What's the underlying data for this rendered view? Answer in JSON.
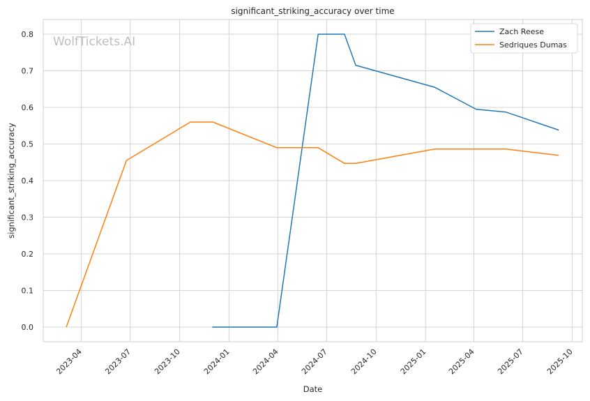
{
  "chart_data": {
    "type": "line",
    "title": "significant_striking_accuracy over time",
    "xlabel": "Date",
    "ylabel": "significant_striking_accuracy",
    "watermark": "WolfTickets.AI",
    "xlim": [
      "2023-01-20",
      "2025-10-20"
    ],
    "ylim": [
      -0.04,
      0.84
    ],
    "x_ticks": [
      "2023-04",
      "2023-07",
      "2023-10",
      "2024-01",
      "2024-04",
      "2024-07",
      "2024-10",
      "2025-01",
      "2025-04",
      "2025-07",
      "2025-10"
    ],
    "y_ticks": [
      0.0,
      0.1,
      0.2,
      0.3,
      0.4,
      0.5,
      0.6,
      0.7,
      0.8
    ],
    "y_tick_labels": [
      "0.0",
      "0.1",
      "0.2",
      "0.3",
      "0.4",
      "0.5",
      "0.6",
      "0.7",
      "0.8"
    ],
    "grid": true,
    "legend_position": "top-right",
    "series": [
      {
        "name": "Zach Reese",
        "color": "#1f77b4",
        "points": [
          {
            "x": "2023-12-01",
            "y": 0.0
          },
          {
            "x": "2024-03-30",
            "y": 0.0
          },
          {
            "x": "2024-06-15",
            "y": 0.8
          },
          {
            "x": "2024-08-03",
            "y": 0.8
          },
          {
            "x": "2024-08-24",
            "y": 0.715
          },
          {
            "x": "2025-01-18",
            "y": 0.655
          },
          {
            "x": "2025-04-05",
            "y": 0.595
          },
          {
            "x": "2025-05-31",
            "y": 0.587
          },
          {
            "x": "2025-09-06",
            "y": 0.538
          }
        ]
      },
      {
        "name": "Sedriques Dumas",
        "color": "#ff7f0e",
        "points": [
          {
            "x": "2023-03-04",
            "y": 0.0
          },
          {
            "x": "2023-06-24",
            "y": 0.455
          },
          {
            "x": "2023-10-21",
            "y": 0.56
          },
          {
            "x": "2023-12-02",
            "y": 0.56
          },
          {
            "x": "2024-03-30",
            "y": 0.49
          },
          {
            "x": "2024-06-15",
            "y": 0.49
          },
          {
            "x": "2024-08-03",
            "y": 0.447
          },
          {
            "x": "2024-08-24",
            "y": 0.447
          },
          {
            "x": "2025-01-18",
            "y": 0.486
          },
          {
            "x": "2025-05-31",
            "y": 0.486
          },
          {
            "x": "2025-09-06",
            "y": 0.469
          }
        ]
      }
    ]
  }
}
